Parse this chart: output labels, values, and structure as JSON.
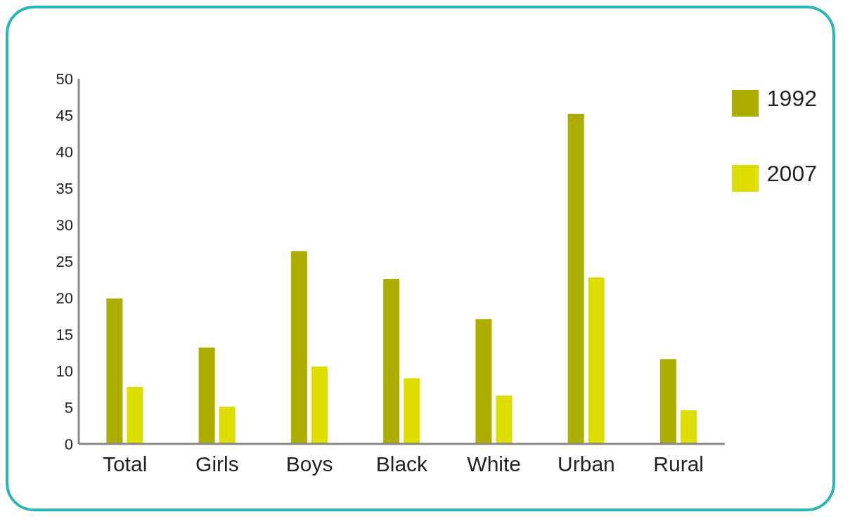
{
  "chart_data": {
    "type": "bar",
    "categories": [
      "Total",
      "Girls",
      "Boys",
      "Black",
      "White",
      "Urban",
      "Rural"
    ],
    "series": [
      {
        "name": "1992",
        "color": "#adad00",
        "values": [
          19.9,
          13.2,
          26.4,
          22.6,
          17.1,
          45.2,
          11.6
        ]
      },
      {
        "name": "2007",
        "color": "#dddd00",
        "values": [
          7.8,
          5.1,
          10.6,
          9.0,
          6.6,
          22.8,
          4.6
        ]
      }
    ],
    "ylim": [
      0,
      50
    ],
    "yticks": [
      0,
      5,
      10,
      15,
      20,
      25,
      30,
      35,
      40,
      45,
      50
    ],
    "grid": false,
    "legend": "top right"
  }
}
